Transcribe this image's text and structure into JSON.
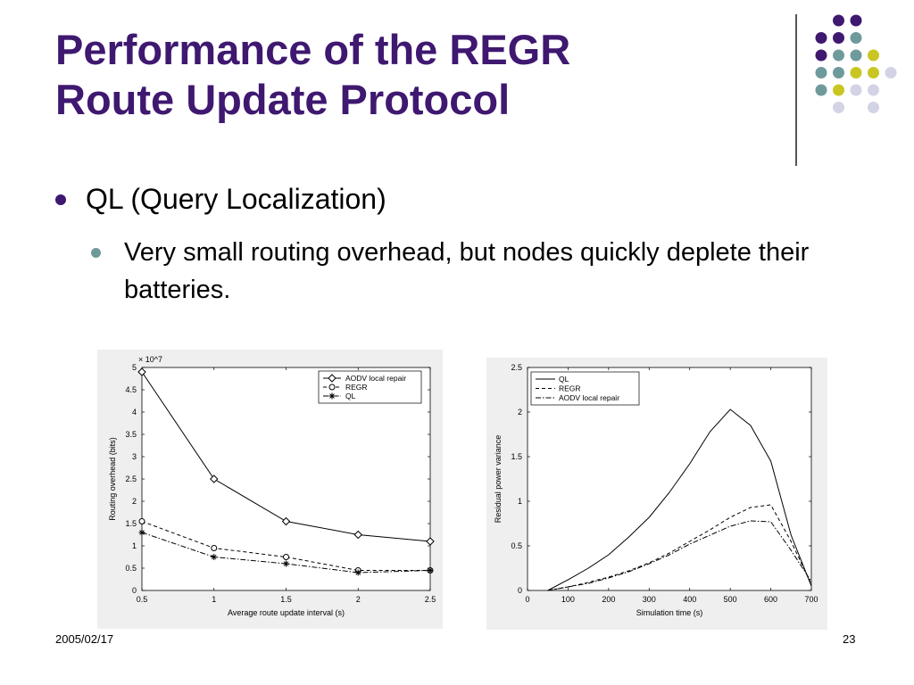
{
  "slide": {
    "title_line1": "Performance of the REGR",
    "title_line2": "Route Update Protocol",
    "bullet1": "QL (Query Localization)",
    "bullet2": "Very small routing overhead, but nodes quickly deplete their batteries.",
    "footer_date": "2005/02/17",
    "page_number": "23"
  },
  "colors": {
    "title": "#3f1870",
    "dot_purple": "#3f1870",
    "dot_teal": "#6f9a9c",
    "dot_yellow": "#c9c622",
    "dot_lavender": "#d3d3e6"
  },
  "chart_data": [
    {
      "type": "line",
      "title": "",
      "xlabel": "Average route update interval (s)",
      "ylabel": "Routing overhead (bits)",
      "y_multiplier": "× 10^7",
      "xlim": [
        0.5,
        2.5
      ],
      "ylim": [
        0,
        5
      ],
      "xticks": [
        "0.5",
        "1",
        "1.5",
        "2",
        "2.5"
      ],
      "yticks": [
        "0",
        "0.5",
        "1",
        "1.5",
        "2",
        "2.5",
        "3",
        "3.5",
        "4",
        "4.5",
        "5"
      ],
      "legend_position": "top-right",
      "x": [
        0.5,
        1,
        1.5,
        2,
        2.5
      ],
      "series": [
        {
          "name": "AODV local repair",
          "values": [
            4.9,
            2.5,
            1.55,
            1.25,
            1.1
          ],
          "style": "solid",
          "marker": "diamond"
        },
        {
          "name": "REGR",
          "values": [
            1.55,
            0.95,
            0.75,
            0.45,
            0.45
          ],
          "style": "dashed",
          "marker": "circle"
        },
        {
          "name": "QL",
          "values": [
            1.3,
            0.75,
            0.6,
            0.4,
            0.45
          ],
          "style": "dashdot",
          "marker": "star"
        }
      ]
    },
    {
      "type": "line",
      "title": "",
      "xlabel": "Simulation time (s)",
      "ylabel": "Residual power variance",
      "xlim": [
        0,
        700
      ],
      "ylim": [
        0,
        2.5
      ],
      "xticks": [
        "0",
        "100",
        "200",
        "300",
        "400",
        "500",
        "600",
        "700"
      ],
      "yticks": [
        "0",
        "0.5",
        "1",
        "1.5",
        "2",
        "2.5"
      ],
      "legend_position": "top-left",
      "series": [
        {
          "name": "QL",
          "style": "solid",
          "points": [
            [
              50,
              0
            ],
            [
              100,
              0.12
            ],
            [
              150,
              0.25
            ],
            [
              200,
              0.4
            ],
            [
              250,
              0.6
            ],
            [
              300,
              0.82
            ],
            [
              350,
              1.1
            ],
            [
              400,
              1.42
            ],
            [
              450,
              1.78
            ],
            [
              500,
              2.03
            ],
            [
              550,
              1.85
            ],
            [
              600,
              1.45
            ],
            [
              650,
              0.62
            ],
            [
              700,
              0.05
            ]
          ]
        },
        {
          "name": "REGR",
          "style": "dashed",
          "points": [
            [
              50,
              0
            ],
            [
              100,
              0.04
            ],
            [
              150,
              0.09
            ],
            [
              200,
              0.15
            ],
            [
              250,
              0.22
            ],
            [
              300,
              0.31
            ],
            [
              350,
              0.42
            ],
            [
              400,
              0.55
            ],
            [
              450,
              0.68
            ],
            [
              500,
              0.82
            ],
            [
              550,
              0.93
            ],
            [
              600,
              0.96
            ],
            [
              650,
              0.55
            ],
            [
              700,
              0.07
            ]
          ]
        },
        {
          "name": "AODV local repair",
          "style": "dashdot",
          "points": [
            [
              50,
              0
            ],
            [
              100,
              0.04
            ],
            [
              150,
              0.08
            ],
            [
              200,
              0.14
            ],
            [
              250,
              0.21
            ],
            [
              300,
              0.3
            ],
            [
              350,
              0.4
            ],
            [
              400,
              0.52
            ],
            [
              450,
              0.62
            ],
            [
              500,
              0.72
            ],
            [
              550,
              0.78
            ],
            [
              600,
              0.77
            ],
            [
              650,
              0.45
            ],
            [
              700,
              0.1
            ]
          ]
        }
      ]
    }
  ]
}
